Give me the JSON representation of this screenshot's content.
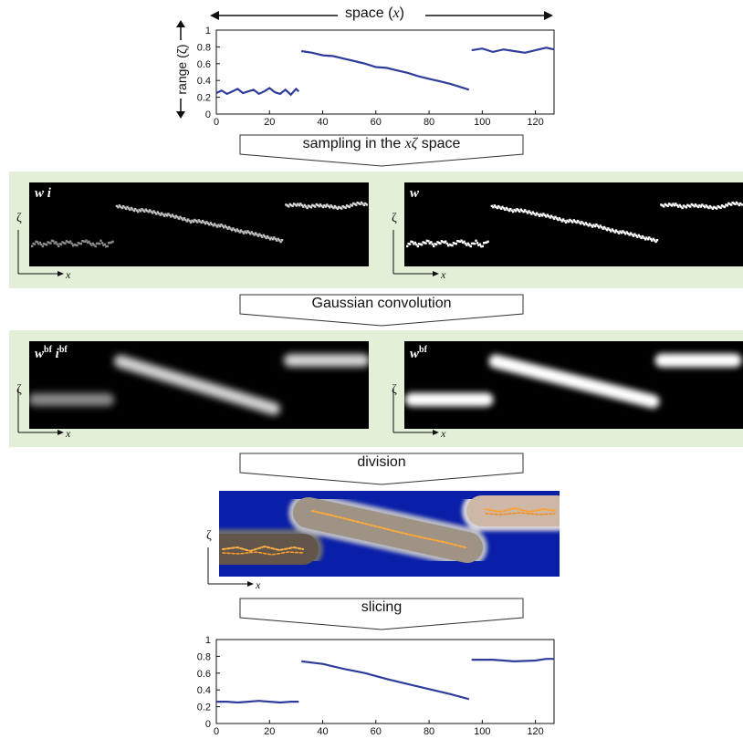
{
  "header": {
    "space_label_prefix": "space (",
    "space_label_var": "x",
    "space_label_suffix": ")",
    "range_label": "range (ζ)"
  },
  "steps": {
    "sampling_prefix": "sampling in the ",
    "sampling_var": "xζ",
    "sampling_suffix": " space",
    "convolution": "Gaussian convolution",
    "division": "division",
    "slicing": "slicing"
  },
  "panels": {
    "wi_label": "w i",
    "w_label": "w",
    "wbf_ibf_w": "w",
    "wbf_ibf_sup1": "bf",
    "wbf_ibf_i": "i",
    "wbf_ibf_sup2": "bf",
    "wbf_w": "w",
    "wbf_sup": "bf"
  },
  "axis_glyphs": {
    "zeta": "ζ",
    "x": "x"
  },
  "colors": {
    "band": "#e3efd6",
    "line": "#2e3d9c",
    "division_bg": "#0a1fa8"
  },
  "chart_data": [
    {
      "type": "line",
      "xlim": [
        0,
        127
      ],
      "ylim": [
        0,
        1
      ],
      "xticks": [
        0,
        20,
        40,
        60,
        80,
        100,
        120
      ],
      "yticks": [
        0,
        0.2,
        0.4,
        0.6,
        0.8,
        1
      ],
      "ylabel": "range (ζ)",
      "series": [
        {
          "x": [
            0,
            2,
            4,
            6,
            8,
            10,
            12,
            14,
            16,
            18,
            20,
            22,
            24,
            26,
            28,
            30,
            31
          ],
          "y": [
            0.25,
            0.28,
            0.24,
            0.27,
            0.3,
            0.25,
            0.27,
            0.29,
            0.24,
            0.27,
            0.31,
            0.26,
            0.24,
            0.29,
            0.23,
            0.3,
            0.27
          ]
        },
        {
          "x": [
            32,
            36,
            40,
            44,
            48,
            52,
            56,
            60,
            64,
            68,
            72,
            76,
            80,
            84,
            88,
            92,
            95
          ],
          "y": [
            0.75,
            0.73,
            0.7,
            0.69,
            0.66,
            0.63,
            0.6,
            0.56,
            0.55,
            0.52,
            0.49,
            0.45,
            0.42,
            0.39,
            0.36,
            0.32,
            0.29
          ]
        },
        {
          "x": [
            96,
            100,
            104,
            108,
            112,
            116,
            120,
            124,
            127
          ],
          "y": [
            0.76,
            0.78,
            0.74,
            0.77,
            0.75,
            0.73,
            0.76,
            0.79,
            0.77
          ]
        }
      ]
    },
    {
      "type": "line",
      "xlim": [
        0,
        127
      ],
      "ylim": [
        0,
        1
      ],
      "xticks": [
        0,
        20,
        40,
        60,
        80,
        100,
        120
      ],
      "yticks": [
        0,
        0.2,
        0.4,
        0.6,
        0.8,
        1
      ],
      "series": [
        {
          "x": [
            0,
            4,
            8,
            12,
            16,
            20,
            24,
            28,
            31
          ],
          "y": [
            0.26,
            0.26,
            0.25,
            0.26,
            0.27,
            0.26,
            0.25,
            0.26,
            0.26
          ]
        },
        {
          "x": [
            32,
            40,
            48,
            56,
            64,
            72,
            80,
            88,
            95
          ],
          "y": [
            0.74,
            0.71,
            0.65,
            0.6,
            0.53,
            0.47,
            0.41,
            0.35,
            0.29
          ]
        },
        {
          "x": [
            96,
            104,
            112,
            120,
            124,
            127
          ],
          "y": [
            0.76,
            0.76,
            0.74,
            0.75,
            0.77,
            0.77
          ]
        }
      ]
    }
  ]
}
